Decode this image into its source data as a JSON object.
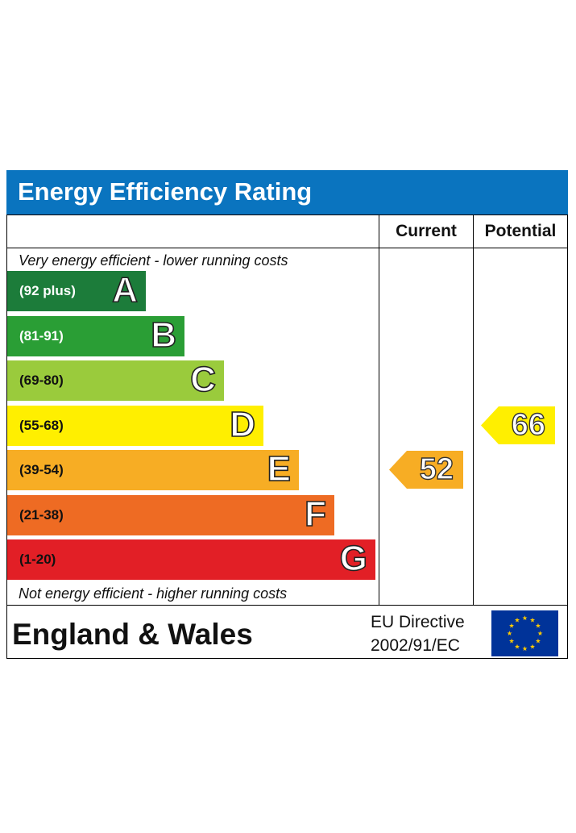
{
  "header": {
    "title": "Energy Efficiency Rating"
  },
  "columns": {
    "current": "Current",
    "potential": "Potential"
  },
  "notes": {
    "top": "Very energy efficient - lower running costs",
    "bottom": "Not energy efficient - higher running costs"
  },
  "chart_data": {
    "type": "bar",
    "title": "Energy Efficiency Rating",
    "categories": [
      "A",
      "B",
      "C",
      "D",
      "E",
      "F",
      "G"
    ],
    "bands": [
      {
        "letter": "A",
        "range": "(92 plus)",
        "color": "#1c7c3a",
        "text_color": "#ffffff"
      },
      {
        "letter": "B",
        "range": "(81-91)",
        "color": "#2a9e35",
        "text_color": "#ffffff"
      },
      {
        "letter": "C",
        "range": "(69-80)",
        "color": "#9acb3c",
        "text_color": "#111111"
      },
      {
        "letter": "D",
        "range": "(55-68)",
        "color": "#ffef00",
        "text_color": "#111111"
      },
      {
        "letter": "E",
        "range": "(39-54)",
        "color": "#f7ad24",
        "text_color": "#111111"
      },
      {
        "letter": "F",
        "range": "(21-38)",
        "color": "#ee6b23",
        "text_color": "#111111"
      },
      {
        "letter": "G",
        "range": "(1-20)",
        "color": "#e21f26",
        "text_color": "#111111"
      }
    ],
    "current": {
      "value": 52,
      "band": "E",
      "color": "#f7ad24"
    },
    "potential": {
      "value": 66,
      "band": "D",
      "color": "#ffef00"
    }
  },
  "footer": {
    "region": "England & Wales",
    "directive_line1": "EU Directive",
    "directive_line2": "2002/91/EC",
    "flag_icon": "eu-flag-icon"
  }
}
